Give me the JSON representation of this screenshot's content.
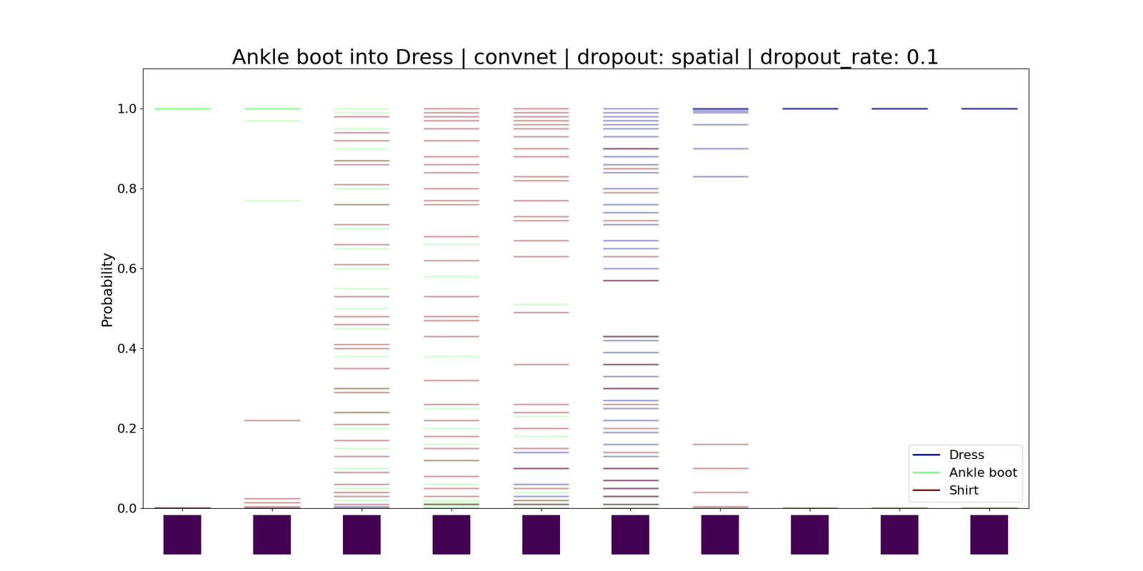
{
  "chart_data": {
    "type": "strip",
    "title": "Ankle boot into Dress | convnet | dropout: spatial | dropout_rate: 0.1",
    "y_label": "Probability",
    "categories": [
      null,
      null,
      null,
      null,
      null,
      null,
      null,
      null,
      null,
      null
    ],
    "series": [
      {
        "name": "Dress",
        "color": "#000080",
        "values": [
          [
            0.0,
            0.0
          ],
          [
            0.0,
            0.0
          ],
          [
            0.0,
            0.005
          ],
          [
            0.0,
            0.01
          ],
          [
            0.0,
            0.01,
            0.03,
            0.06,
            0.1,
            0.14
          ],
          [
            1.0,
            0.99,
            0.98,
            0.97,
            0.96,
            0.95,
            0.93,
            0.9,
            0.88,
            0.86,
            0.84,
            0.8,
            0.76,
            0.74,
            0.71,
            0.67,
            0.65,
            0.6,
            0.57,
            0.43,
            0.42,
            0.39,
            0.36,
            0.33,
            0.3,
            0.27,
            0.25,
            0.22,
            0.19,
            0.16,
            0.13,
            0.1,
            0.07,
            0.05,
            0.03,
            0.01
          ],
          [
            1.0,
            1.0,
            0.999,
            0.995,
            0.99,
            0.96,
            0.9,
            0.83
          ],
          [
            1.0,
            1.0,
            1.0
          ],
          [
            1.0,
            1.0,
            1.0
          ],
          [
            1.0,
            1.0,
            1.0
          ]
        ]
      },
      {
        "name": "Ankle boot",
        "color": "#80ff80",
        "values": [
          [
            1.0,
            1.0,
            1.0,
            0.999
          ],
          [
            1.0,
            1.0,
            1.0,
            0.97,
            0.77
          ],
          [
            1.0,
            0.99,
            0.95,
            0.9,
            0.87,
            0.8,
            0.76,
            0.7,
            0.65,
            0.6,
            0.55,
            0.5,
            0.45,
            0.38,
            0.3,
            0.24,
            0.2,
            0.15,
            0.1,
            0.05,
            0.02,
            0.0
          ],
          [
            0.0,
            0.005,
            0.01,
            0.015,
            0.02,
            0.06,
            0.12,
            0.16,
            0.2,
            0.25,
            0.38,
            0.58,
            0.66
          ],
          [
            0.0,
            0.01,
            0.02,
            0.04,
            0.18,
            0.23,
            0.51
          ],
          [
            0.0,
            0.01
          ],
          [
            0.0,
            0.0
          ],
          [
            0.0,
            0.0
          ],
          [
            0.0,
            0.0
          ],
          [
            0.0,
            0.0
          ]
        ]
      },
      {
        "name": "Shirt",
        "color": "#800000",
        "values": [
          [
            0.0,
            0.001
          ],
          [
            0.22,
            0.025,
            0.015,
            0.005,
            0.0
          ],
          [
            0.98,
            0.94,
            0.92,
            0.87,
            0.86,
            0.81,
            0.76,
            0.71,
            0.66,
            0.61,
            0.53,
            0.48,
            0.46,
            0.41,
            0.4,
            0.35,
            0.3,
            0.29,
            0.24,
            0.21,
            0.17,
            0.13,
            0.09,
            0.06,
            0.04,
            0.03,
            0.01,
            0.0
          ],
          [
            1.0,
            0.99,
            0.98,
            0.97,
            0.95,
            0.92,
            0.88,
            0.86,
            0.84,
            0.8,
            0.77,
            0.76,
            0.68,
            0.62,
            0.53,
            0.48,
            0.47,
            0.43,
            0.32,
            0.26,
            0.22,
            0.18,
            0.15,
            0.12,
            0.08,
            0.05,
            0.03,
            0.01
          ],
          [
            1.0,
            0.99,
            0.98,
            0.97,
            0.96,
            0.95,
            0.93,
            0.9,
            0.88,
            0.83,
            0.82,
            0.77,
            0.73,
            0.72,
            0.67,
            0.63,
            0.49,
            0.36,
            0.26,
            0.24,
            0.2,
            0.15,
            0.1,
            0.05,
            0.02,
            0.01
          ],
          [
            0.0,
            0.01,
            0.03,
            0.05,
            0.07,
            0.1,
            0.14,
            0.2,
            0.26,
            0.3,
            0.36,
            0.43,
            0.57,
            0.63,
            0.72,
            0.79,
            0.85,
            0.9
          ],
          [
            0.0,
            0.005,
            0.04,
            0.1,
            0.16
          ],
          [
            0.0,
            0.0
          ],
          [
            0.0,
            0.0
          ],
          [
            0.0,
            0.0
          ]
        ]
      }
    ],
    "ylim": [
      0,
      1.1
    ],
    "yticks": [
      0.0,
      0.2,
      0.4,
      0.6,
      0.8,
      1.0
    ],
    "legend": "lower right",
    "tick_labels": "y"
  }
}
